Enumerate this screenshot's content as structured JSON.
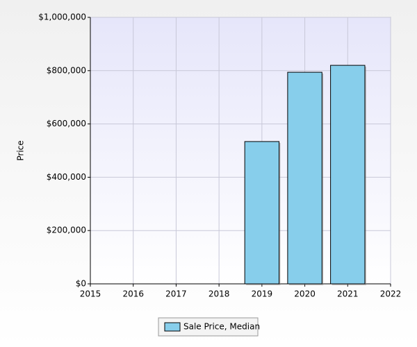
{
  "chart_data": {
    "type": "bar",
    "y_label": "Price",
    "x": [
      2019,
      2020,
      2021
    ],
    "series": [
      {
        "name": "Sale Price, Median",
        "color": "#87ceeb",
        "values": [
          534000,
          794000,
          820000
        ]
      }
    ],
    "xlim": [
      2015,
      2022
    ],
    "xticks": [
      2015,
      2016,
      2017,
      2018,
      2019,
      2020,
      2021,
      2022
    ],
    "ylim": [
      0,
      1000000
    ],
    "yticks": [
      {
        "value": 0,
        "label": "$0"
      },
      {
        "value": 200000,
        "label": "$200,000"
      },
      {
        "value": 400000,
        "label": "$400,000"
      },
      {
        "value": 600000,
        "label": "$600,000"
      },
      {
        "value": 800000,
        "label": "$800,000"
      },
      {
        "value": 1000000,
        "label": "$1,000,000"
      }
    ],
    "grid": true,
    "legend": "bottom"
  }
}
